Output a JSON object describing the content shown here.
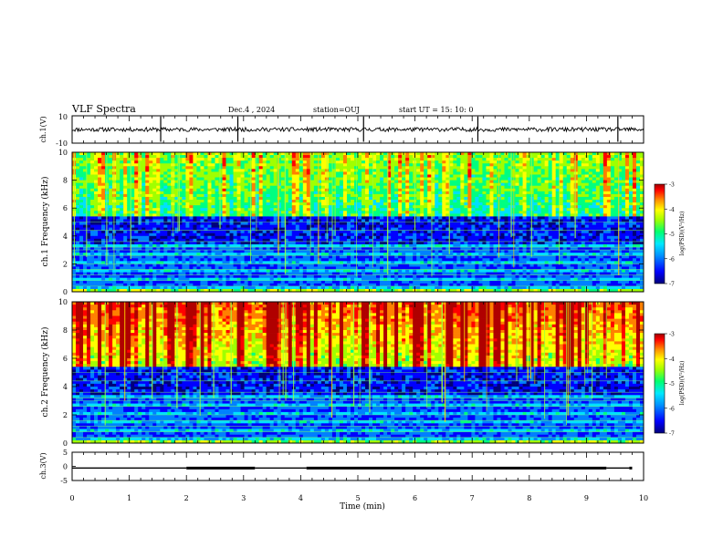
{
  "header": {
    "title": "VLF Spectra",
    "date": "Dec.4 , 2024",
    "station": "station=OUJ",
    "start": "start  UT =   15: 10: 0"
  },
  "colors": {
    "spectrogram_colormap": [
      "#00007a",
      "#0000ff",
      "#0080ff",
      "#00e0ff",
      "#00ff80",
      "#a0ff00",
      "#ffff00",
      "#ff8000",
      "#ff0000",
      "#b00000"
    ]
  },
  "chart_data": [
    {
      "type": "line",
      "name": "ch1-waveform",
      "ylabel": "ch.1(V)",
      "ylim": [
        -10,
        10
      ],
      "y_tick_labels": [
        "10",
        "-10"
      ],
      "xlim": [
        0,
        10
      ],
      "approx_level": 0,
      "noise_band": [
        -1.5,
        1.5
      ],
      "spike_times_min": [
        1.55,
        2.9,
        5.1,
        7.1,
        9.55
      ]
    },
    {
      "type": "heatmap",
      "name": "ch1-spectrogram",
      "ylabel": "ch.1\nFrequency (kHz)",
      "ylim": [
        0,
        10
      ],
      "y_tick_labels": [
        "0",
        "2",
        "4",
        "6",
        "8",
        "10"
      ],
      "xlim": [
        0,
        10
      ],
      "colorbar": {
        "label": "log(PSD)(V²/Hz)",
        "range": [
          -7,
          -3
        ],
        "tick_labels": [
          "-3",
          "-4",
          "-5",
          "-6",
          "-7"
        ]
      }
    },
    {
      "type": "heatmap",
      "name": "ch2-spectrogram",
      "ylabel": "ch.2\nFrequency (kHz)",
      "ylim": [
        0,
        10
      ],
      "y_tick_labels": [
        "0",
        "2",
        "4",
        "6",
        "8",
        "10"
      ],
      "xlim": [
        0,
        10
      ],
      "colorbar": {
        "label": "log(PSD)(V²/Hz)",
        "range": [
          -7,
          -3
        ],
        "tick_labels": [
          "-3",
          "-4",
          "-5",
          "-6",
          "-7"
        ]
      }
    },
    {
      "type": "line",
      "name": "ch3-level",
      "ylabel": "ch.3(V)",
      "ylim": [
        -5,
        5
      ],
      "y_tick_labels": [
        "5",
        "0",
        "-5"
      ],
      "xlim": [
        0,
        10
      ],
      "xlabel": "Time  (min)",
      "x_tick_labels": [
        "0",
        "1",
        "2",
        "3",
        "4",
        "5",
        "6",
        "7",
        "8",
        "9",
        "10"
      ],
      "segments": [
        {
          "x": [
            0,
            2.0
          ],
          "y": -0.3
        },
        {
          "x": [
            2.0,
            3.2
          ],
          "y": 0.0
        },
        {
          "x": [
            3.2,
            4.1
          ],
          "y": -0.3
        },
        {
          "x": [
            4.1,
            9.35
          ],
          "y": 0.0
        },
        {
          "x": [
            9.35,
            9.75
          ],
          "y": -0.3
        },
        {
          "x": [
            9.75,
            9.8
          ],
          "y": 0.0
        }
      ]
    }
  ]
}
